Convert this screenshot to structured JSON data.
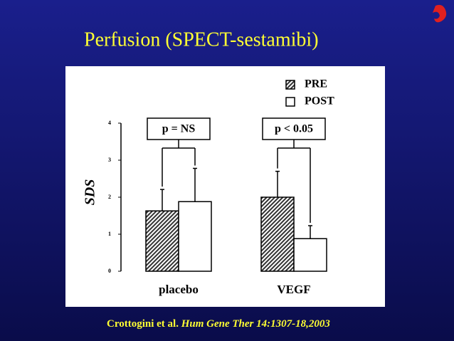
{
  "chart_data": {
    "type": "bar",
    "title": "Perfusion (SPECT-sestamibi)",
    "y_label": "SDS",
    "categories": [
      "placebo",
      "VEGF"
    ],
    "series": [
      {
        "name": "PRE",
        "color": "#333333",
        "hatch": true,
        "values": [
          1.63,
          2.0
        ],
        "errors": [
          0.58,
          0.7
        ]
      },
      {
        "name": "POST",
        "color": "#ffffff",
        "hatch": false,
        "values": [
          1.88,
          0.88
        ],
        "errors": [
          0.9,
          0.35
        ]
      }
    ],
    "annotations": [
      "p = NS",
      "p < 0.05"
    ],
    "ylim": [
      0,
      4
    ],
    "yticks": [
      0,
      1,
      2,
      3,
      4
    ],
    "grid": false,
    "legend": "upper right",
    "citation": {
      "authors": "Crottogini et al.",
      "reference": "Hum Gene Ther 14:1307-18,2003"
    }
  }
}
